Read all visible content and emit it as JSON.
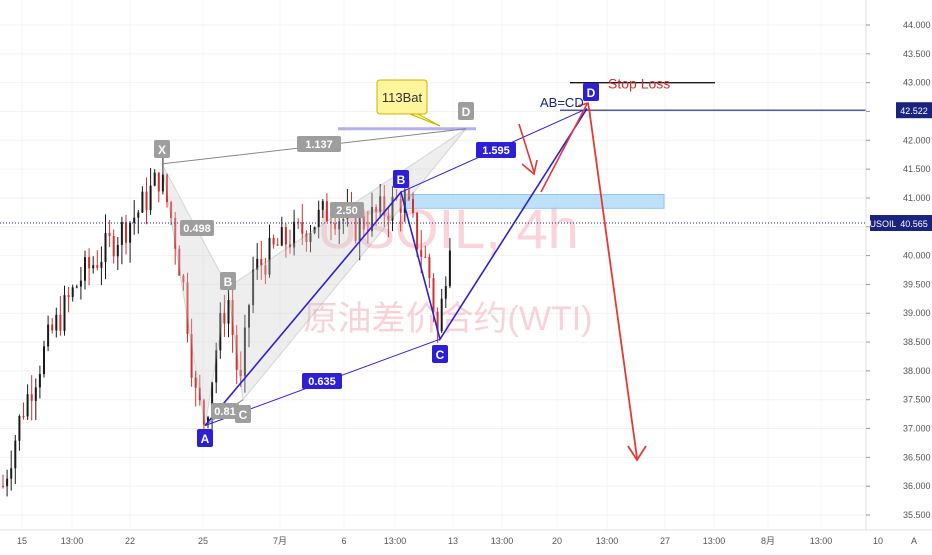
{
  "chart_data": {
    "type": "candlestick",
    "symbol_watermark": "USOIL, 4h",
    "watermark_subtitle": "原油差价合约(WTI)",
    "price_axis": {
      "ylim": [
        35.3,
        44.4
      ],
      "ticks": [
        "44.000",
        "43.500",
        "43.000",
        "42.500",
        "42.000",
        "41.500",
        "41.000",
        "40.500",
        "40.000",
        "39.500",
        "39.000",
        "38.500",
        "38.000",
        "37.500",
        "37.000",
        "36.500",
        "36.000",
        "35.500"
      ],
      "tick_values": [
        44.0,
        43.5,
        43.0,
        42.5,
        42.0,
        41.5,
        41.0,
        40.5,
        40.0,
        39.5,
        39.0,
        38.5,
        38.0,
        37.5,
        37.0,
        36.5,
        36.0,
        35.5
      ]
    },
    "time_axis": {
      "ticks": [
        "15",
        "13:00",
        "22",
        "25",
        "7月",
        "6",
        "13:00",
        "13",
        "13:00",
        "20",
        "13:00",
        "27",
        "13:00",
        "8月",
        "13:00",
        "10"
      ],
      "last_label": "A"
    },
    "current_price": {
      "symbol": "USOIL",
      "value": "40.565",
      "price": 40.565,
      "color": "#1a237e"
    },
    "level_badge": {
      "value": "42.522",
      "price": 42.522
    },
    "bat_pattern": {
      "label": "113Bat",
      "points": [
        {
          "name": "X",
          "price": 41.59
        },
        {
          "name": "A",
          "price": 37.05
        },
        {
          "name": "B",
          "price": 39.45
        },
        {
          "name": "C",
          "price": 37.5
        },
        {
          "name": "D",
          "price": 42.2
        }
      ],
      "ratios": [
        {
          "label": "0.498"
        },
        {
          "label": "1.137"
        },
        {
          "label": "2.50"
        },
        {
          "label": "0.81"
        }
      ],
      "color": "#888888"
    },
    "abcd_pattern": {
      "label": "AB=CD",
      "points": [
        {
          "name": "A",
          "price": 37.05
        },
        {
          "name": "B",
          "price": 41.1
        },
        {
          "name": "C",
          "price": 38.55
        },
        {
          "name": "D",
          "price": 42.55
        }
      ],
      "ratios": [
        {
          "label": "1.595"
        },
        {
          "label": "0.635"
        }
      ],
      "color": "#2d1fd6"
    },
    "stop_loss": {
      "label": "Stop  Loss",
      "price": 43.0,
      "color": "#d32f2f"
    },
    "resistance_zone": {
      "from_price": 40.82,
      "to_price": 41.06,
      "color": "#b3dcfb"
    },
    "colors": {
      "up": "#1a1a1a",
      "down": "#d32f2f",
      "arrow": "#e53935",
      "watermark": "#f7c7cf"
    }
  }
}
